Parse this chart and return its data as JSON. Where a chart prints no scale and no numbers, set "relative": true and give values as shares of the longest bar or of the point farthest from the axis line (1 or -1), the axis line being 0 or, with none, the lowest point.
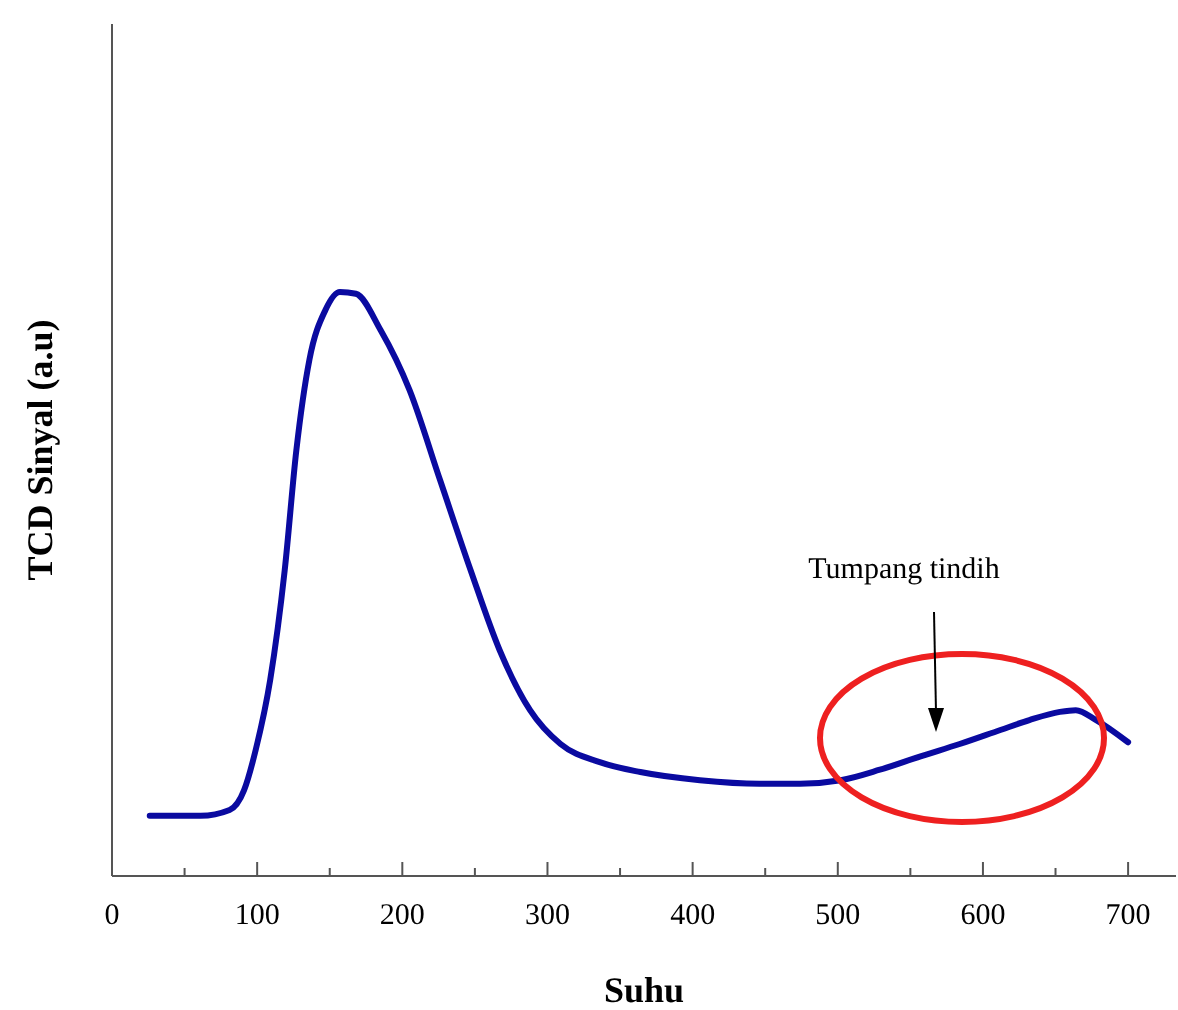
{
  "chart_data": {
    "type": "line",
    "xlabel": "Suhu",
    "ylabel": "TCD Sinyal (a.u)",
    "relative": true,
    "xlim": [
      0,
      733
    ],
    "xticks": [
      0,
      {
        "value": 50,
        "label": null
      },
      100,
      {
        "value": 150,
        "label": null
      },
      200,
      {
        "value": 250,
        "label": null
      },
      300,
      {
        "value": 350,
        "label": null
      },
      400,
      {
        "value": 450,
        "label": null
      },
      500,
      {
        "value": 550,
        "label": null
      },
      600,
      {
        "value": 650,
        "label": null
      },
      700
    ],
    "x": [
      26,
      61,
      81,
      91,
      99,
      109,
      119,
      127,
      136,
      147,
      157,
      168,
      185,
      205,
      226,
      247,
      267,
      288,
      309,
      336,
      364,
      405,
      446,
      474,
      502,
      529,
      557,
      584,
      612,
      632,
      653,
      664,
      678,
      700
    ],
    "series": [
      {
        "color": "#0a0aa0",
        "values": [
          0.103,
          0.103,
          0.113,
          0.147,
          0.216,
          0.336,
          0.524,
          0.729,
          0.884,
          0.969,
          1.0,
          0.997,
          0.935,
          0.832,
          0.678,
          0.524,
          0.387,
          0.284,
          0.226,
          0.195,
          0.178,
          0.164,
          0.158,
          0.158,
          0.164,
          0.182,
          0.205,
          0.226,
          0.25,
          0.267,
          0.281,
          0.284,
          0.267,
          0.229
        ]
      }
    ],
    "annotations": [
      "Tumpang tindih"
    ],
    "grid": false,
    "line_style": "solid",
    "marker": "none"
  }
}
